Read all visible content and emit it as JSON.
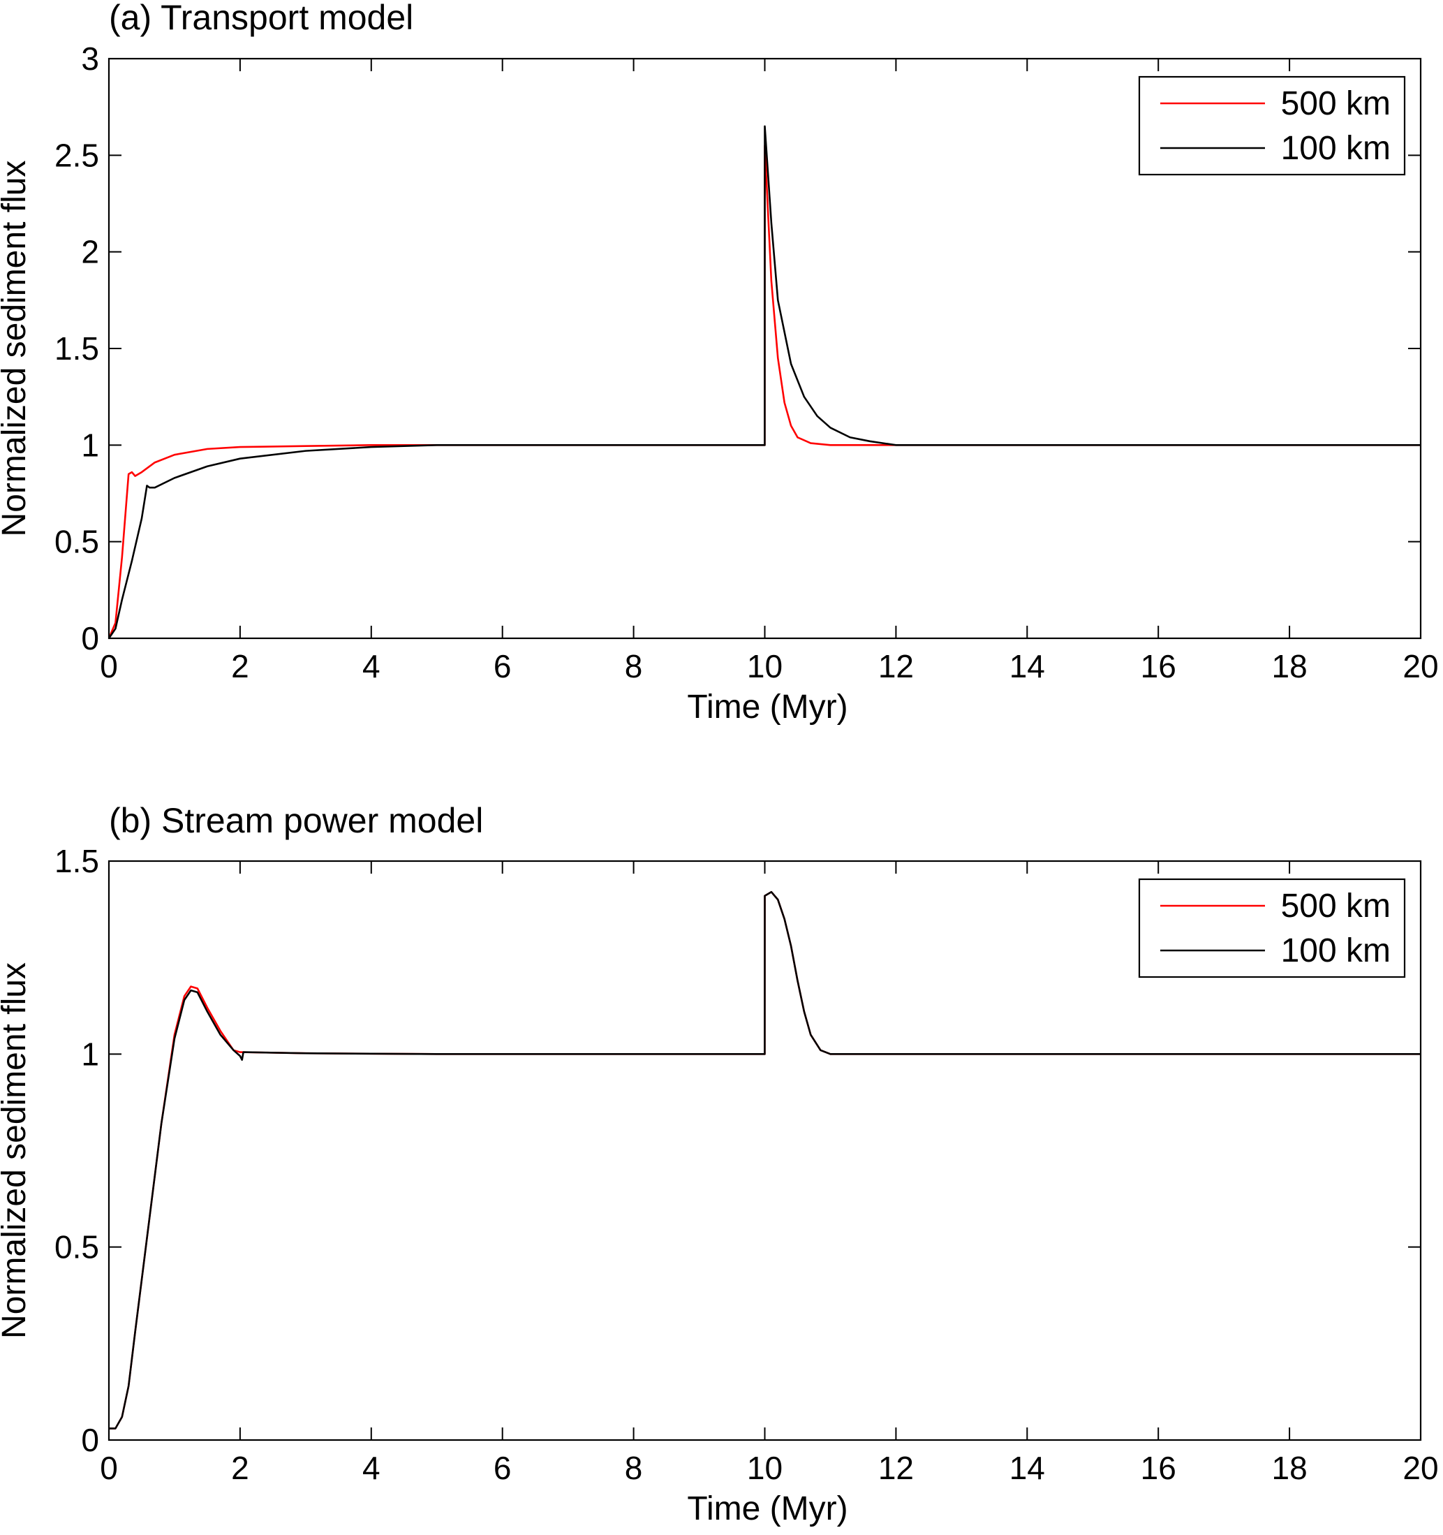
{
  "chart_data": [
    {
      "type": "line",
      "title": "(a) Transport model",
      "xlabel": "Time (Myr)",
      "ylabel": "Normalized sediment flux",
      "xlim": [
        0,
        20
      ],
      "ylim": [
        0,
        3
      ],
      "xticks": [
        0,
        2,
        4,
        6,
        8,
        10,
        12,
        14,
        16,
        18,
        20
      ],
      "yticks": [
        0,
        0.5,
        1,
        1.5,
        2,
        2.5,
        3
      ],
      "xtick_labels": [
        "0",
        "2",
        "4",
        "6",
        "8",
        "10",
        "12",
        "14",
        "16",
        "18",
        "20"
      ],
      "ytick_labels": [
        "0",
        "0.5",
        "1",
        "1.5",
        "2",
        "2.5",
        "3"
      ],
      "legend_position": "top-right",
      "grid": false,
      "series": [
        {
          "name": "500 km",
          "color": "#ff0000",
          "points": [
            [
              0,
              0
            ],
            [
              0.1,
              0.08
            ],
            [
              0.2,
              0.42
            ],
            [
              0.3,
              0.85
            ],
            [
              0.35,
              0.86
            ],
            [
              0.4,
              0.84
            ],
            [
              0.5,
              0.86
            ],
            [
              0.7,
              0.91
            ],
            [
              1.0,
              0.95
            ],
            [
              1.5,
              0.98
            ],
            [
              2,
              0.99
            ],
            [
              3,
              0.995
            ],
            [
              4,
              1
            ],
            [
              6,
              1
            ],
            [
              9.999,
              1
            ],
            [
              10.0,
              2.55
            ],
            [
              10.1,
              1.85
            ],
            [
              10.2,
              1.45
            ],
            [
              10.3,
              1.22
            ],
            [
              10.4,
              1.1
            ],
            [
              10.5,
              1.04
            ],
            [
              10.7,
              1.01
            ],
            [
              11,
              1.0
            ],
            [
              12,
              1
            ],
            [
              20,
              1
            ]
          ]
        },
        {
          "name": "100 km",
          "color": "#000000",
          "points": [
            [
              0,
              0
            ],
            [
              0.1,
              0.05
            ],
            [
              0.2,
              0.2
            ],
            [
              0.35,
              0.4
            ],
            [
              0.5,
              0.62
            ],
            [
              0.58,
              0.79
            ],
            [
              0.62,
              0.78
            ],
            [
              0.7,
              0.78
            ],
            [
              1.0,
              0.83
            ],
            [
              1.5,
              0.89
            ],
            [
              2,
              0.93
            ],
            [
              3,
              0.97
            ],
            [
              4,
              0.99
            ],
            [
              5,
              1
            ],
            [
              9.999,
              1
            ],
            [
              10.0,
              2.65
            ],
            [
              10.1,
              2.15
            ],
            [
              10.2,
              1.75
            ],
            [
              10.4,
              1.42
            ],
            [
              10.6,
              1.25
            ],
            [
              10.8,
              1.15
            ],
            [
              11,
              1.09
            ],
            [
              11.3,
              1.04
            ],
            [
              11.6,
              1.02
            ],
            [
              12,
              1.0
            ],
            [
              13,
              1
            ],
            [
              20,
              1
            ]
          ]
        }
      ]
    },
    {
      "type": "line",
      "title": "(b) Stream power model",
      "xlabel": "Time (Myr)",
      "ylabel": "Normalized sediment flux",
      "xlim": [
        0,
        20
      ],
      "ylim": [
        0,
        1.5
      ],
      "xticks": [
        0,
        2,
        4,
        6,
        8,
        10,
        12,
        14,
        16,
        18,
        20
      ],
      "yticks": [
        0,
        0.5,
        1,
        1.5
      ],
      "xtick_labels": [
        "0",
        "2",
        "4",
        "6",
        "8",
        "10",
        "12",
        "14",
        "16",
        "18",
        "20"
      ],
      "ytick_labels": [
        "0",
        "0.5",
        "1",
        "1.5"
      ],
      "legend_position": "top-right",
      "grid": false,
      "series": [
        {
          "name": "500 km",
          "color": "#ff0000",
          "points": [
            [
              0,
              0.03
            ],
            [
              0.1,
              0.03
            ],
            [
              0.2,
              0.06
            ],
            [
              0.3,
              0.14
            ],
            [
              0.4,
              0.28
            ],
            [
              0.6,
              0.55
            ],
            [
              0.8,
              0.82
            ],
            [
              1.0,
              1.05
            ],
            [
              1.15,
              1.15
            ],
            [
              1.25,
              1.175
            ],
            [
              1.35,
              1.17
            ],
            [
              1.5,
              1.12
            ],
            [
              1.7,
              1.06
            ],
            [
              1.9,
              1.01
            ],
            [
              2.0,
              1.005
            ],
            [
              3,
              1.002
            ],
            [
              5,
              1.0
            ],
            [
              9.999,
              1.0
            ],
            [
              10.0,
              1.41
            ],
            [
              10.1,
              1.42
            ],
            [
              10.2,
              1.4
            ],
            [
              10.3,
              1.35
            ],
            [
              10.4,
              1.28
            ],
            [
              10.5,
              1.19
            ],
            [
              10.6,
              1.11
            ],
            [
              10.7,
              1.05
            ],
            [
              10.85,
              1.01
            ],
            [
              11,
              1.0
            ],
            [
              12,
              1.0
            ],
            [
              20,
              1.0
            ]
          ]
        },
        {
          "name": "100 km",
          "color": "#000000",
          "points": [
            [
              0,
              0.03
            ],
            [
              0.1,
              0.03
            ],
            [
              0.2,
              0.06
            ],
            [
              0.3,
              0.14
            ],
            [
              0.4,
              0.28
            ],
            [
              0.6,
              0.55
            ],
            [
              0.8,
              0.82
            ],
            [
              1.0,
              1.04
            ],
            [
              1.15,
              1.14
            ],
            [
              1.25,
              1.165
            ],
            [
              1.35,
              1.16
            ],
            [
              1.5,
              1.11
            ],
            [
              1.7,
              1.05
            ],
            [
              1.9,
              1.01
            ],
            [
              2.0,
              0.995
            ],
            [
              2.03,
              0.985
            ],
            [
              2.05,
              1.005
            ],
            [
              3,
              1.002
            ],
            [
              5,
              1.0
            ],
            [
              9.999,
              1.0
            ],
            [
              10.0,
              1.41
            ],
            [
              10.1,
              1.42
            ],
            [
              10.2,
              1.4
            ],
            [
              10.3,
              1.35
            ],
            [
              10.4,
              1.28
            ],
            [
              10.5,
              1.19
            ],
            [
              10.6,
              1.11
            ],
            [
              10.7,
              1.05
            ],
            [
              10.85,
              1.01
            ],
            [
              11,
              1.0
            ],
            [
              12,
              1.0
            ],
            [
              20,
              1.0
            ]
          ]
        }
      ]
    }
  ]
}
